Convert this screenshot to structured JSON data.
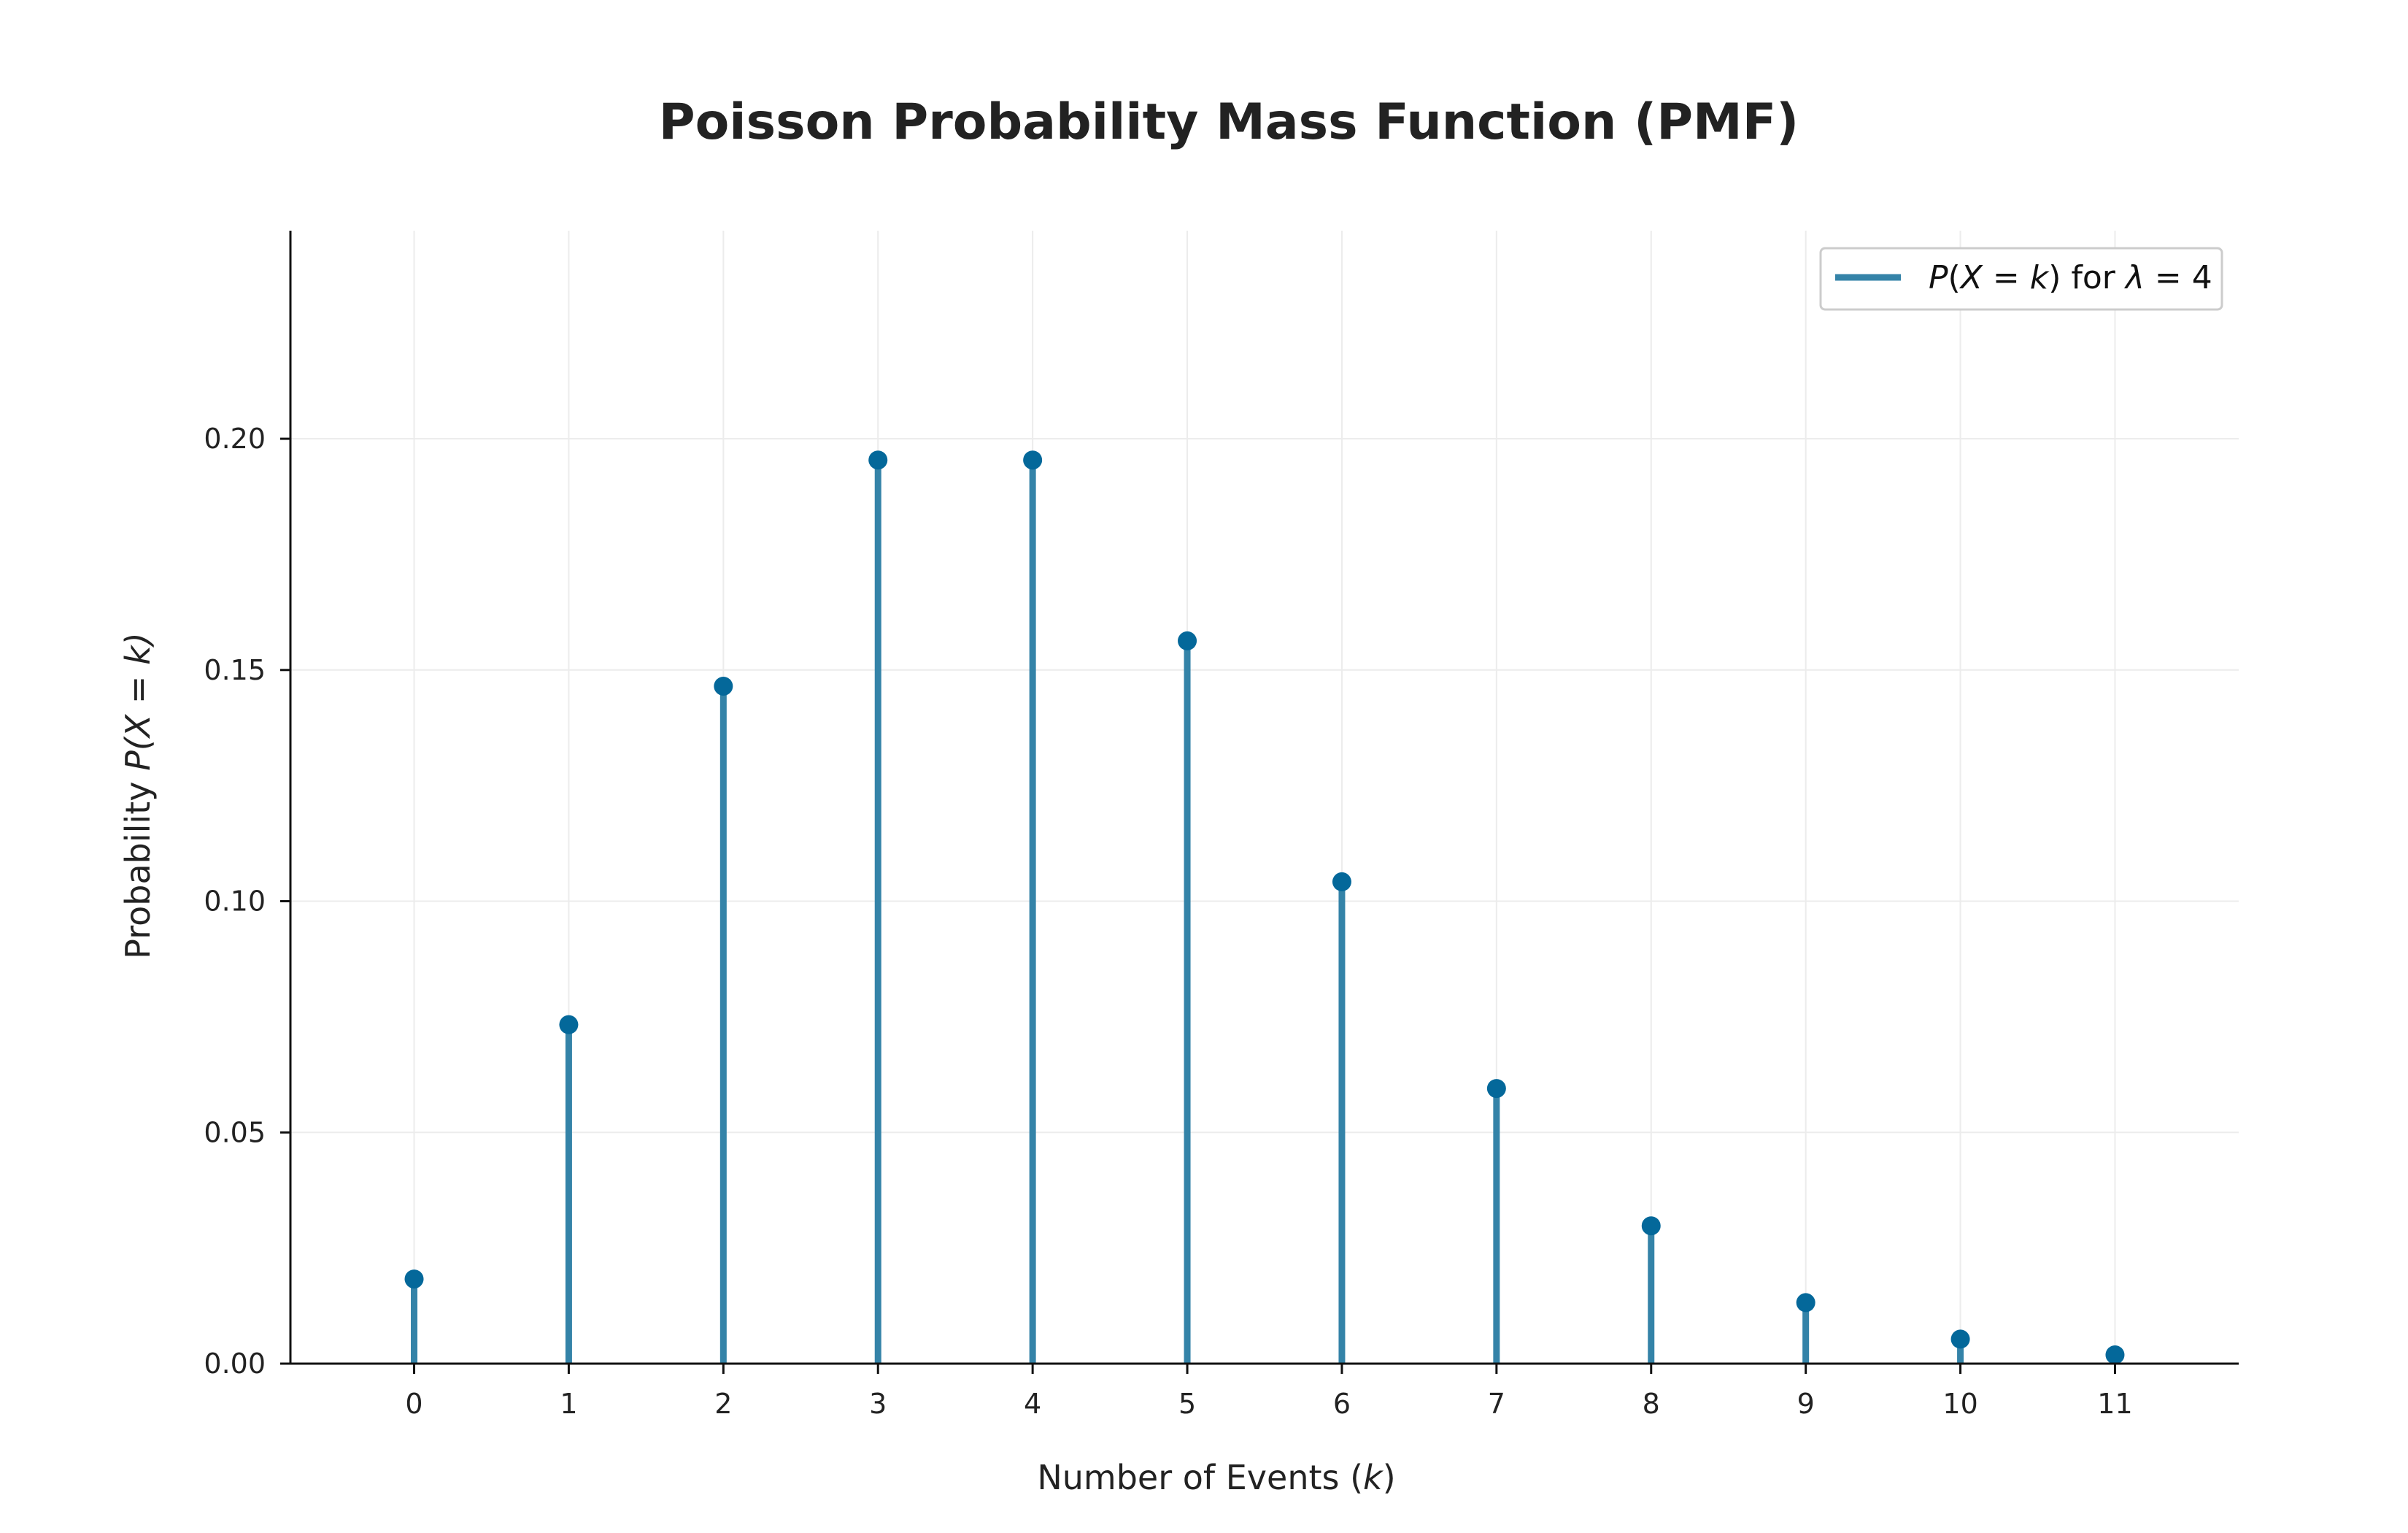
{
  "chart_data": {
    "type": "stem",
    "title": "Poisson Probability Mass Function (PMF)",
    "xlabel": {
      "prefix": "Number of Events (",
      "var": "k",
      "suffix": ")"
    },
    "ylabel": {
      "prefix": "Probability ",
      "expr": "P(X = k)"
    },
    "x": [
      0,
      1,
      2,
      3,
      4,
      5,
      6,
      7,
      8,
      9,
      10,
      11
    ],
    "series": [
      {
        "name": "P(X = k) for λ = 4",
        "values": [
          0.0183,
          0.0733,
          0.1465,
          0.1954,
          0.1954,
          0.1563,
          0.1042,
          0.0595,
          0.0298,
          0.0132,
          0.0053,
          0.0019
        ],
        "color": "#3483a8",
        "marker_color": "#04689a"
      }
    ],
    "xlim": [
      -0.8,
      11.8
    ],
    "ylim": [
      0,
      0.245
    ],
    "yticks": [
      "0.00",
      "0.05",
      "0.10",
      "0.15",
      "0.20"
    ],
    "xticks": [
      "0",
      "1",
      "2",
      "3",
      "4",
      "5",
      "6",
      "7",
      "8",
      "9",
      "10",
      "11"
    ],
    "grid": true,
    "legend_position": "top-right",
    "legend": {
      "left_var": "P",
      "paren_open": "(",
      "x_var": "X",
      "eq": " = ",
      "k_var": "k",
      "paren_close": ")",
      "for": " for ",
      "lambda": "λ",
      "eq2": " = ",
      "value": "4"
    }
  }
}
